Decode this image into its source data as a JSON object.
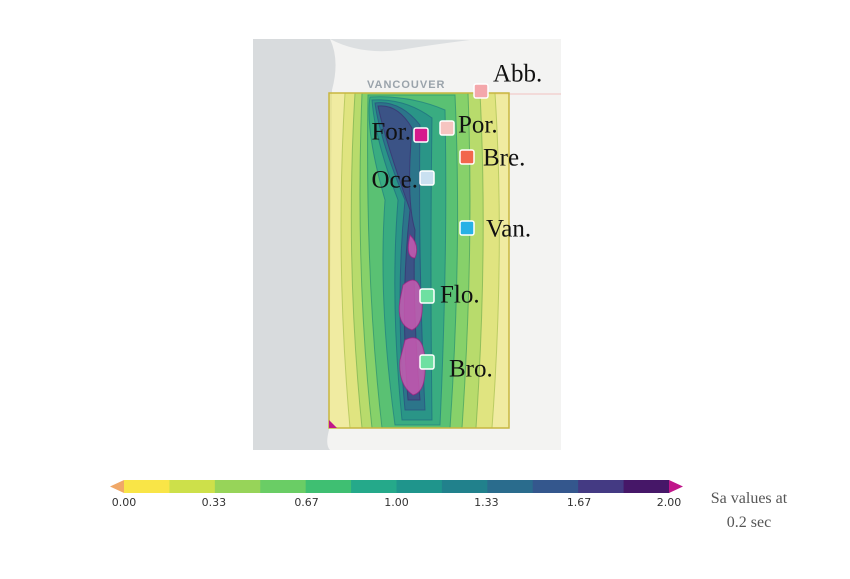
{
  "map": {
    "place_label": "VANCOUVER",
    "sites": [
      {
        "label": "Abb.",
        "color": "#f4a7ab"
      },
      {
        "label": "Por.",
        "color": "#f6c4c0"
      },
      {
        "label": "Bre.",
        "color": "#f2674d"
      },
      {
        "label": "For.",
        "color": "#d5198c"
      },
      {
        "label": "Oce.",
        "color": "#c9e0f0"
      },
      {
        "label": "Van.",
        "color": "#27b1e6"
      },
      {
        "label": "Flo.",
        "color": "#6ee0a1"
      },
      {
        "label": "Bro.",
        "color": "#6ee0a1"
      }
    ]
  },
  "colorbar": {
    "range": [
      0,
      2
    ],
    "colors": [
      "#f9e547",
      "#cde04a",
      "#97d459",
      "#6acd65",
      "#3fbf72",
      "#25a98a",
      "#1f958c",
      "#21818c",
      "#2a6c8d",
      "#34578d",
      "#443a83",
      "#461768"
    ],
    "under_color": "#f0a868",
    "over_color": "#c0168a",
    "ticks": [
      {
        "value": 0,
        "label": "0.00"
      },
      {
        "value": 0.33,
        "label": "0.33"
      },
      {
        "value": 0.67,
        "label": "0.67"
      },
      {
        "value": 1,
        "label": "1.00"
      },
      {
        "value": 1.33,
        "label": "1.33"
      },
      {
        "value": 1.67,
        "label": "1.67"
      },
      {
        "value": 2,
        "label": "2.00"
      }
    ],
    "title": [
      "Sa values at",
      "0.2 sec"
    ]
  }
}
